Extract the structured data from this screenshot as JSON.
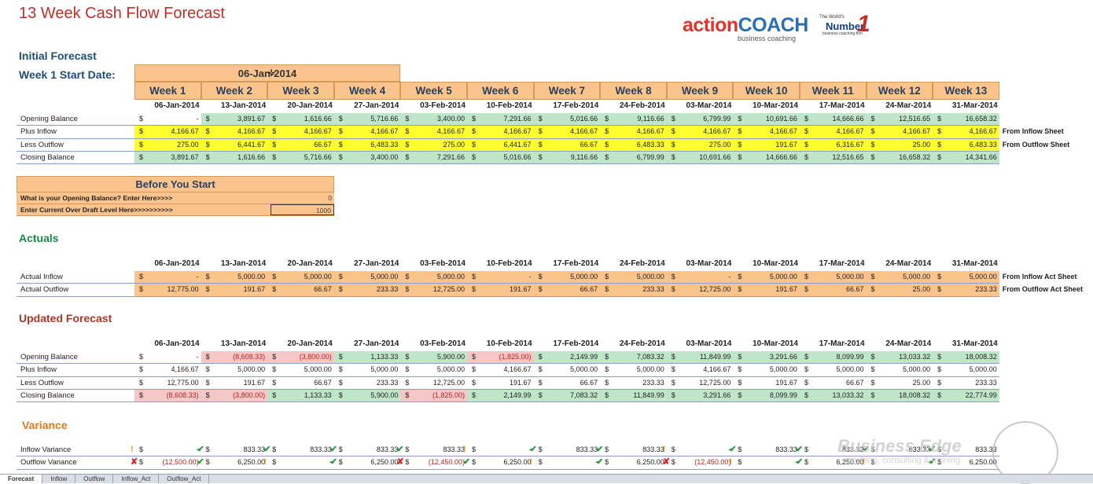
{
  "title": "13 Week Cash Flow Forecast",
  "logo": {
    "brand_action": "action",
    "brand_coach": "COACH",
    "tagline": "business coaching",
    "badge_small": "The World's",
    "badge_number": "Number",
    "badge_one": "1",
    "badge_sub": "business coaching firm"
  },
  "initial": {
    "section_title": "Initial Forecast",
    "start_label": "Week 1 Start Date:",
    "start_date": "06-Jan-2014",
    "weeks": [
      "Week 1",
      "Week 2",
      "Week 3",
      "Week 4",
      "Week 5",
      "Week 6",
      "Week 7",
      "Week 8",
      "Week 9",
      "Week 10",
      "Week 11",
      "Week 12",
      "Week 13"
    ],
    "rows": [
      {
        "label": "Opening Balance",
        "values": [
          "-",
          "3,891.67",
          "1,616.66",
          "5,716.66",
          "3,400.00",
          "7,291.66",
          "5,016.66",
          "9,116.66",
          "6,799.99",
          "10,691.66",
          "14,666.66",
          "12,516.65",
          "16,658.32"
        ]
      },
      {
        "label": "Plus Inflow",
        "values": [
          "4,166.67",
          "4,166.67",
          "4,166.67",
          "4,166.67",
          "4,166.67",
          "4,166.67",
          "4,166.67",
          "4,166.67",
          "4,166.67",
          "4,166.67",
          "4,166.67",
          "4,166.67",
          "4,166.67"
        ],
        "note": "From Inflow Sheet"
      },
      {
        "label": "Less Outflow",
        "values": [
          "275.00",
          "6,441.67",
          "66.67",
          "6,483.33",
          "275.00",
          "6,441.67",
          "66.67",
          "6,483.33",
          "275.00",
          "191.67",
          "6,316.67",
          "25.00",
          "6,483.33"
        ],
        "note": "From Outflow Sheet"
      },
      {
        "label": "Closing Balance",
        "values": [
          "3,891.67",
          "1,616.66",
          "5,716.66",
          "3,400.00",
          "7,291.66",
          "5,016.66",
          "9,116.66",
          "6,799.99",
          "10,691.66",
          "14,666.66",
          "12,516.65",
          "16,658.32",
          "14,341.66"
        ]
      }
    ]
  },
  "dates": [
    "06-Jan-2014",
    "13-Jan-2014",
    "20-Jan-2014",
    "27-Jan-2014",
    "03-Feb-2014",
    "10-Feb-2014",
    "17-Feb-2014",
    "24-Feb-2014",
    "03-Mar-2014",
    "10-Mar-2014",
    "17-Mar-2014",
    "24-Mar-2014",
    "31-Mar-2014"
  ],
  "before_you_start": {
    "title": "Before You Start",
    "q1": "What is your Opening Balance? Enter Here>>>>",
    "a1": "0",
    "q2": "Enter Current Over Draft Level Here>>>>>>>>>>",
    "a2": "1000"
  },
  "actuals": {
    "section_title": "Actuals",
    "rows": [
      {
        "label": "Actual Inflow",
        "values": [
          "-",
          "5,000.00",
          "5,000.00",
          "5,000.00",
          "5,000.00",
          "-",
          "5,000.00",
          "5,000.00",
          "-",
          "5,000.00",
          "5,000.00",
          "5,000.00",
          "5,000.00"
        ],
        "note": "From  Inflow Act Sheet"
      },
      {
        "label": "Actual Outflow",
        "values": [
          "12,775.00",
          "191.67",
          "66.67",
          "233.33",
          "12,725.00",
          "191.67",
          "66.67",
          "233.33",
          "12,725.00",
          "191.67",
          "66.67",
          "25.00",
          "233.33"
        ],
        "note": "From Outflow Act Sheet"
      }
    ]
  },
  "updated": {
    "section_title": "Updated Forecast",
    "rows": [
      {
        "label": "Opening Balance",
        "values": [
          "-",
          "(8,608.33)",
          "(3,800.00)",
          "1,133.33",
          "5,900.00",
          "(1,825.00)",
          "2,149.99",
          "7,083.32",
          "11,849.99",
          "3,291.66",
          "8,099.99",
          "13,033.32",
          "18,008.32"
        ]
      },
      {
        "label": "Plus Inflow",
        "values": [
          "4,166.67",
          "5,000.00",
          "5,000.00",
          "5,000.00",
          "5,000.00",
          "4,166.67",
          "5,000.00",
          "5,000.00",
          "4,166.67",
          "5,000.00",
          "5,000.00",
          "5,000.00",
          "5,000.00"
        ]
      },
      {
        "label": "Less Outflow",
        "values": [
          "12,775.00",
          "191.67",
          "66.67",
          "233.33",
          "12,725.00",
          "191.67",
          "66.67",
          "233.33",
          "12,725.00",
          "191.67",
          "66.67",
          "25.00",
          "233.33"
        ]
      },
      {
        "label": "Closing Balance",
        "values": [
          "(8,608.33)",
          "(3,800.00)",
          "1,133.33",
          "5,900.00",
          "(1,825.00)",
          "2,149.99",
          "7,083.32",
          "11,849.99",
          "3,291.66",
          "8,099.99",
          "13,033.32",
          "18,008.32",
          "22,774.99"
        ]
      }
    ]
  },
  "variance": {
    "section_title": "Variance",
    "rows": [
      {
        "label": "Inflow Variance",
        "values": [
          "-",
          "833.33",
          "833.33",
          "833.33",
          "833.33",
          "-",
          "833.33",
          "833.33",
          "-",
          "833.33",
          "833.33",
          "833.33",
          "833.33"
        ],
        "icons": [
          "warn",
          "ok",
          "ok",
          "ok",
          "ok",
          "warn",
          "ok",
          "ok",
          "warn",
          "ok",
          "ok",
          "ok",
          "ok"
        ]
      },
      {
        "label": "Outflow Variance",
        "values": [
          "(12,500.00)",
          "6,250.00",
          "-",
          "6,250.00",
          "(12,450.00)",
          "6,250.00",
          "-",
          "6,250.00",
          "(12,450.00)",
          "-",
          "6,250.00",
          "-",
          "6,250.00"
        ],
        "icons": [
          "bad",
          "ok",
          "warn",
          "ok",
          "bad",
          "ok",
          "warn",
          "ok",
          "bad",
          "warn",
          "ok",
          "warn",
          "ok"
        ]
      }
    ]
  },
  "watermark": {
    "brand": "Business Edge",
    "tagline": "coaching, consulting & training"
  },
  "tabs": [
    "Forecast",
    "Inflow",
    "Outflow",
    "Inflow_Act",
    "Outflow_Act"
  ]
}
